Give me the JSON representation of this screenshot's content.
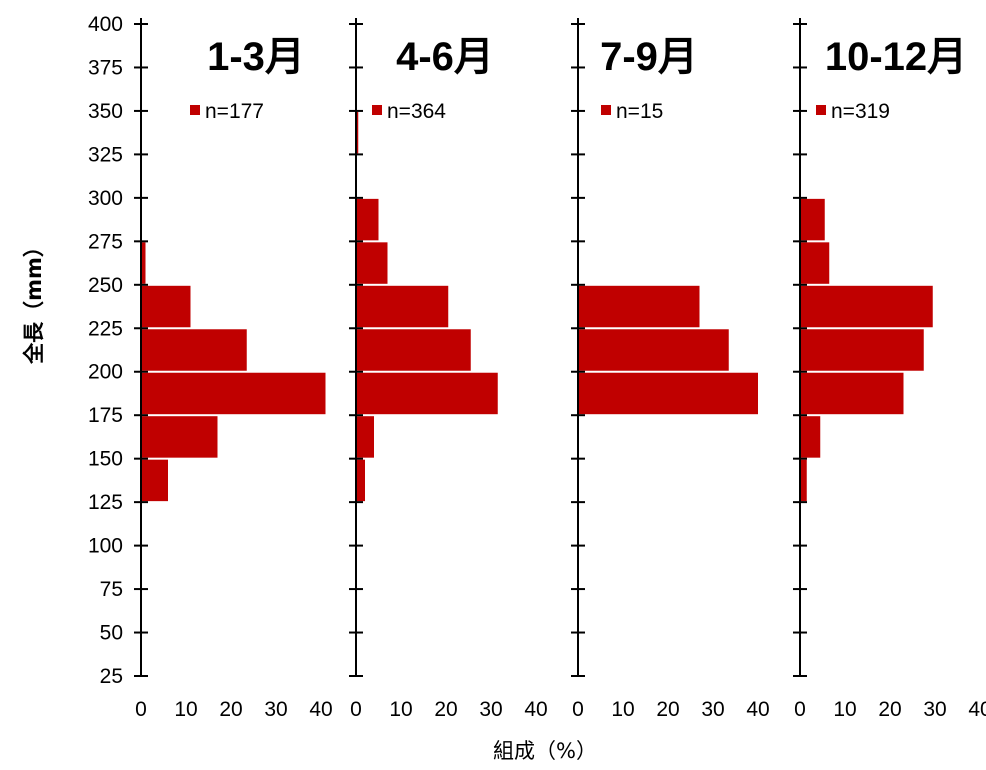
{
  "chart_data": {
    "type": "bar",
    "orientation": "horizontal",
    "ylabel": "全長（mm）",
    "xlabel": "組成（%）",
    "y_ticks": [
      25,
      50,
      75,
      100,
      125,
      150,
      175,
      200,
      225,
      250,
      275,
      300,
      325,
      350,
      375,
      400
    ],
    "x_ticks": [
      0,
      10,
      20,
      30,
      40
    ],
    "ylim": [
      25,
      400
    ],
    "xlim": [
      0,
      40
    ],
    "bar_color": "#C00000",
    "size_classes": [
      {
        "from": 125,
        "to": 150
      },
      {
        "from": 150,
        "to": 175
      },
      {
        "from": 175,
        "to": 200
      },
      {
        "from": 200,
        "to": 225
      },
      {
        "from": 225,
        "to": 250
      },
      {
        "from": 250,
        "to": 275
      },
      {
        "from": 275,
        "to": 300
      },
      {
        "from": 300,
        "to": 325
      },
      {
        "from": 325,
        "to": 350
      }
    ],
    "panels": [
      {
        "title": "1-3月",
        "legend": "n=177",
        "values": [
          6,
          17,
          41,
          23.5,
          11,
          1,
          0,
          0,
          0
        ]
      },
      {
        "title": "4-6月",
        "legend": "n=364",
        "values": [
          2,
          4,
          31.5,
          25.5,
          20.5,
          7,
          5,
          0,
          0.5
        ]
      },
      {
        "title": "7-9月",
        "legend": "n=15",
        "values": [
          0,
          0,
          40,
          33.5,
          27,
          0,
          0,
          0,
          0
        ]
      },
      {
        "title": "10-12月",
        "legend": "n=319",
        "values": [
          1.5,
          4.5,
          23,
          27.5,
          29.5,
          6.5,
          5.5,
          0,
          0
        ]
      }
    ]
  }
}
